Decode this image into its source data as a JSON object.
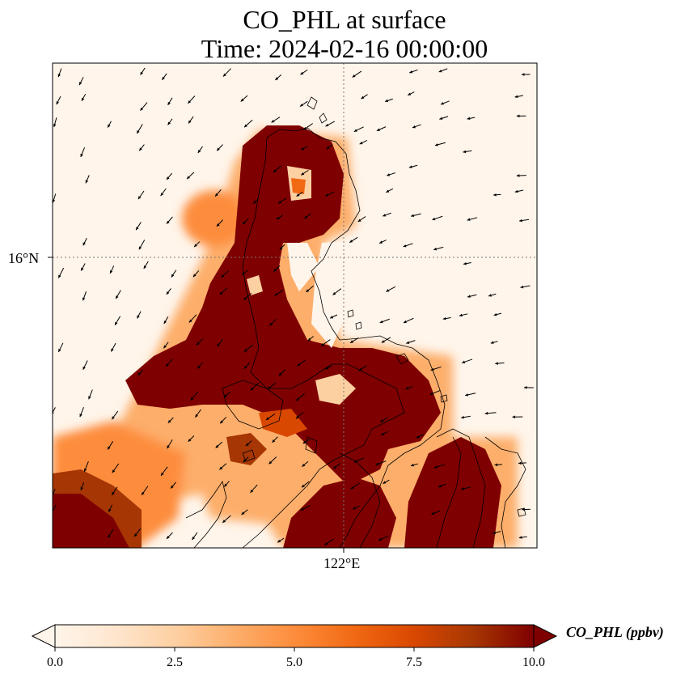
{
  "title": {
    "line1": "CO_PHL at surface",
    "line2": "Time: 2024-02-16 00:00:00"
  },
  "axes": {
    "lat_tick": "16°N",
    "lon_tick": "122°E"
  },
  "colorbar": {
    "label": "CO_PHL (ppbv)",
    "ticks": [
      "0.0",
      "2.5",
      "5.0",
      "7.5",
      "10.0"
    ],
    "min": 0,
    "max": 10,
    "extend": "both",
    "colormap": [
      "#fff5eb",
      "#fee6ce",
      "#fdd0a2",
      "#fdae6b",
      "#fd8d3c",
      "#f16913",
      "#d94801",
      "#a63603",
      "#7f0000"
    ]
  },
  "colors": {
    "background_field": "#fff5eb",
    "high_concentration": "#7f0000",
    "coastline": "#000000",
    "wind_arrows": "#000000",
    "gridline": "#777777"
  }
}
